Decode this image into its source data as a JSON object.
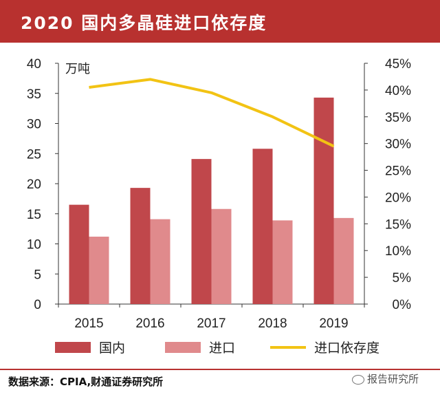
{
  "header": {
    "title": "2020 国内多晶硅进口依存度"
  },
  "source": {
    "text": "数据来源：CPIA,财通证券研究所"
  },
  "watermark": {
    "text": "报告研究所"
  },
  "chart_data": {
    "type": "bar",
    "categories": [
      "2015",
      "2016",
      "2017",
      "2018",
      "2019"
    ],
    "series": [
      {
        "name": "国内",
        "type": "bar",
        "axis": "left",
        "color": "#c0474b",
        "values": [
          16.5,
          19.3,
          24.1,
          25.8,
          34.3
        ]
      },
      {
        "name": "进口",
        "type": "bar",
        "axis": "left",
        "color": "#e08a8c",
        "values": [
          11.2,
          14.1,
          15.8,
          13.9,
          14.3
        ]
      },
      {
        "name": "进口依存度",
        "type": "line",
        "axis": "right",
        "color": "#f2c314",
        "values": [
          40.5,
          42.0,
          39.5,
          35.0,
          29.5
        ]
      }
    ],
    "left_axis": {
      "unit": "万吨",
      "ylim": [
        0,
        40
      ],
      "ticks": [
        "0",
        "5",
        "10",
        "15",
        "20",
        "25",
        "30",
        "35",
        "40"
      ]
    },
    "right_axis": {
      "ylim": [
        0,
        45
      ],
      "ticks": [
        "0%",
        "5%",
        "10%",
        "15%",
        "20%",
        "25%",
        "30%",
        "35%",
        "40%",
        "45%"
      ]
    },
    "plot_background": "#ffffff",
    "grid": false,
    "legend_position": "bottom"
  }
}
